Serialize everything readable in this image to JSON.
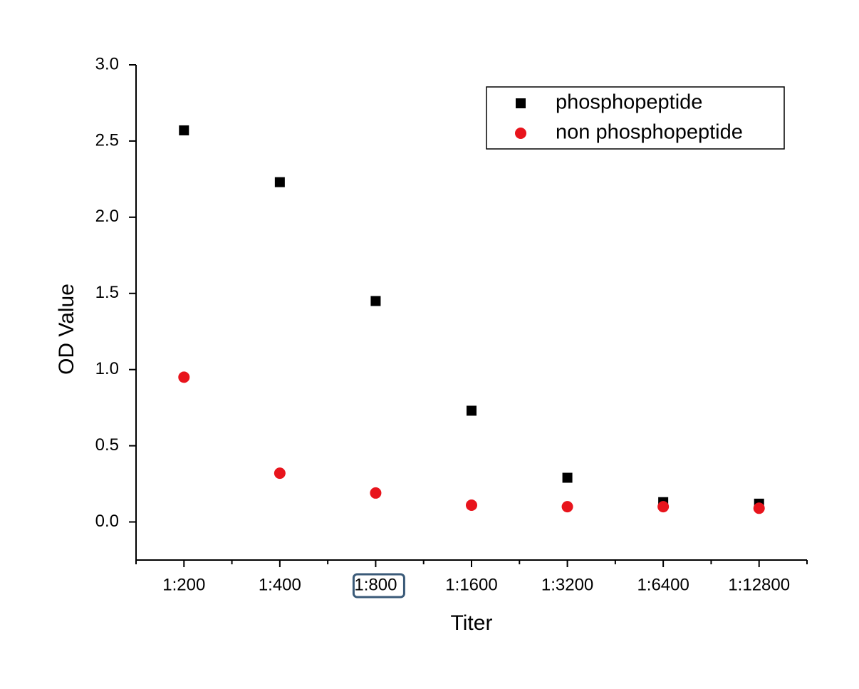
{
  "chart_data": {
    "type": "scatter",
    "x_label": "Titer",
    "y_label": "OD Value",
    "categories": [
      "1:200",
      "1:400",
      "1:800",
      "1:1600",
      "1:3200",
      "1:6400",
      "1:12800"
    ],
    "series": [
      {
        "name": "phosphopeptide",
        "color": "#000000",
        "marker": "square",
        "values": [
          2.57,
          2.23,
          1.45,
          0.73,
          0.29,
          0.13,
          0.12
        ]
      },
      {
        "name": "non phosphopeptide",
        "color": "#e8141c",
        "marker": "circle",
        "values": [
          0.95,
          0.32,
          0.19,
          0.11,
          0.1,
          0.1,
          0.09
        ]
      }
    ],
    "ylim": [
      -0.25,
      3.0
    ],
    "yticks": [
      {
        "value": 0,
        "label": "0.0"
      },
      0.5,
      {
        "value": 1,
        "label": "1.0"
      },
      1.5,
      {
        "value": 2,
        "label": "2.0"
      },
      2.5,
      {
        "value": 3,
        "label": "3.0"
      }
    ],
    "grid": false,
    "legend": "upper right"
  }
}
